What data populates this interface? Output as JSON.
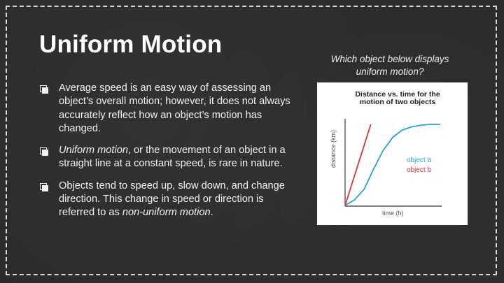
{
  "slide": {
    "title": "Uniform Motion",
    "question": "Which object below displays uniform motion?"
  },
  "bullets": [
    {
      "text": "Average speed is an easy way of assessing an object’s overall motion; however, it does not always accurately reflect how an object’s motion has changed."
    },
    {
      "em": "Uniform motion",
      "rest": ", or the movement of an object in a straight line at a constant speed, is rare in nature."
    },
    {
      "pre": "Objects tend to speed up, slow down, and change direction. This change in speed or direction is referred to as ",
      "em": "non-uniform motion",
      "post": "."
    }
  ],
  "chart_data": {
    "type": "line",
    "title": "Distance vs. time for the motion of two objects",
    "xlabel": "time (h)",
    "ylabel": "distance (km)",
    "x_ticks": false,
    "y_ticks": false,
    "xlim": [
      0,
      1
    ],
    "ylim": [
      0,
      1
    ],
    "legend_position": "right",
    "series": [
      {
        "name": "object a",
        "color": "#2aa1d6",
        "x": [
          0,
          0.1,
          0.2,
          0.3,
          0.4,
          0.5,
          0.6,
          0.7,
          0.8,
          0.9,
          1.0
        ],
        "y": [
          0,
          0.07,
          0.2,
          0.45,
          0.68,
          0.84,
          0.93,
          0.97,
          0.99,
          1.0,
          1.0
        ]
      },
      {
        "name": "object b",
        "color": "#e0333b",
        "x": [
          0,
          0.27
        ],
        "y": [
          0,
          1.0
        ]
      }
    ]
  }
}
